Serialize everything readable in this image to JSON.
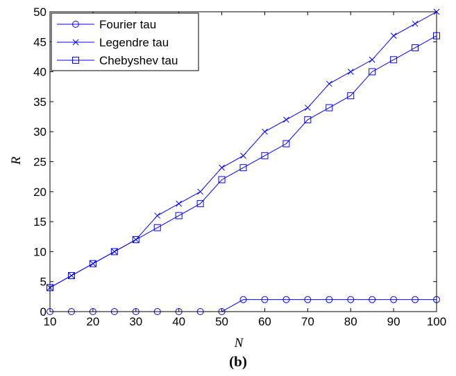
{
  "chart_data": {
    "type": "line",
    "x": [
      10,
      15,
      20,
      25,
      30,
      35,
      40,
      45,
      50,
      55,
      60,
      65,
      70,
      75,
      80,
      85,
      90,
      95,
      100
    ],
    "series": [
      {
        "name": "Fourier tau",
        "marker": "circle",
        "values": [
          0,
          0,
          0,
          0,
          0,
          0,
          0,
          0,
          0,
          2,
          2,
          2,
          2,
          2,
          2,
          2,
          2,
          2,
          2
        ]
      },
      {
        "name": "Legendre tau",
        "marker": "x",
        "values": [
          4,
          6,
          8,
          10,
          12,
          16,
          18,
          20,
          24,
          26,
          30,
          32,
          34,
          38,
          40,
          42,
          46,
          48,
          50
        ]
      },
      {
        "name": "Chebyshev tau",
        "marker": "square",
        "values": [
          4,
          6,
          8,
          10,
          12,
          14,
          16,
          18,
          22,
          24,
          26,
          28,
          32,
          34,
          36,
          40,
          42,
          44,
          46
        ]
      }
    ],
    "xlabel": "N",
    "ylabel": "R",
    "xlim": [
      10,
      100
    ],
    "ylim": [
      0,
      50
    ],
    "xticks": [
      10,
      20,
      30,
      40,
      50,
      60,
      70,
      80,
      90,
      100
    ],
    "yticks": [
      0,
      5,
      10,
      15,
      20,
      25,
      30,
      35,
      40,
      45,
      50
    ],
    "line_color": "#0000ff",
    "grid": false,
    "legend_position": "top-left",
    "caption": "(b)"
  }
}
